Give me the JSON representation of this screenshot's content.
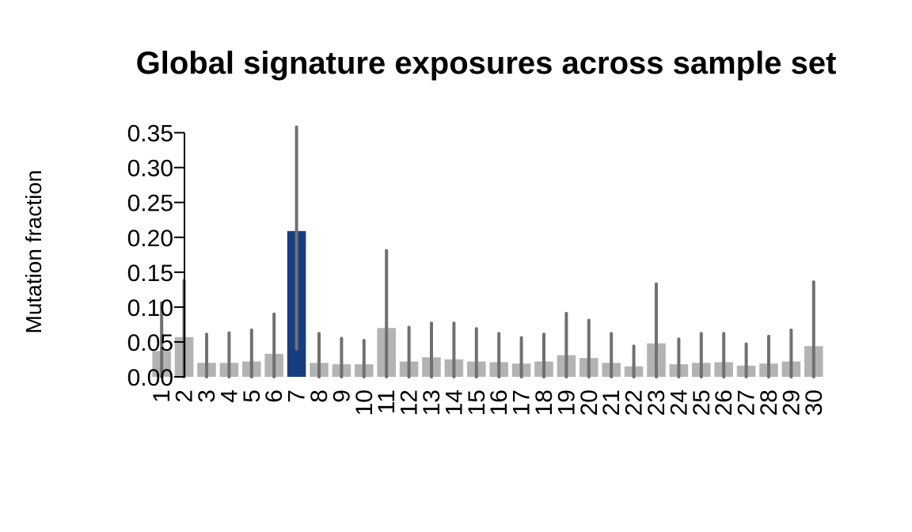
{
  "chart_data": {
    "type": "bar",
    "title": "Global signature exposures across sample set",
    "xlabel": "",
    "ylabel": "Mutation fraction",
    "ylim": [
      0,
      0.36
    ],
    "yticks": [
      0.0,
      0.05,
      0.1,
      0.15,
      0.2,
      0.25,
      0.3,
      0.35
    ],
    "ytick_labels": [
      "0.00",
      "0.05",
      "0.10",
      "0.15",
      "0.20",
      "0.25",
      "0.30",
      "0.35"
    ],
    "categories": [
      "1",
      "2",
      "3",
      "4",
      "5",
      "6",
      "7",
      "8",
      "9",
      "10",
      "11",
      "12",
      "13",
      "14",
      "15",
      "16",
      "17",
      "18",
      "19",
      "20",
      "21",
      "22",
      "23",
      "24",
      "25",
      "26",
      "27",
      "28",
      "29",
      "30"
    ],
    "values": [
      0.037,
      0.057,
      0.02,
      0.02,
      0.022,
      0.033,
      0.209,
      0.02,
      0.018,
      0.018,
      0.07,
      0.022,
      0.028,
      0.025,
      0.022,
      0.021,
      0.019,
      0.022,
      0.031,
      0.027,
      0.02,
      0.015,
      0.048,
      0.018,
      0.02,
      0.021,
      0.016,
      0.019,
      0.022,
      0.044
    ],
    "error_low": [
      0.0,
      0.0,
      0.0,
      0.0,
      0.0,
      0.0,
      0.04,
      0.0,
      0.0,
      0.0,
      0.0,
      0.0,
      0.0,
      0.0,
      0.0,
      0.0,
      0.0,
      0.0,
      0.0,
      0.0,
      0.0,
      0.0,
      0.0,
      0.0,
      0.0,
      0.0,
      0.0,
      0.0,
      0.0,
      0.0
    ],
    "error_high": [
      0.106,
      0.138,
      0.061,
      0.063,
      0.067,
      0.09,
      0.358,
      0.062,
      0.055,
      0.052,
      0.181,
      0.071,
      0.077,
      0.077,
      0.069,
      0.062,
      0.056,
      0.061,
      0.091,
      0.081,
      0.062,
      0.044,
      0.133,
      0.054,
      0.062,
      0.062,
      0.047,
      0.058,
      0.067,
      0.136
    ],
    "highlight_index": 6,
    "colors": {
      "bar": "#b3b3b3",
      "highlight": "#163e7f",
      "errorbar": "#707070",
      "axis": "#000000"
    },
    "grid": false,
    "legend": "none"
  }
}
